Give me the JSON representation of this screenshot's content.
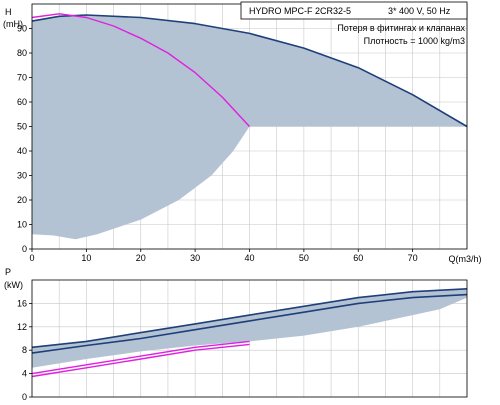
{
  "colors": {
    "envelope_fill": "#b3c3d3",
    "full_speed_curve": "#1f3f7a",
    "single_pump_curve": "#e020e0",
    "grid": "#c8c8c8",
    "axes": "#000000"
  },
  "info_box": {
    "model": "HYDRO MPC-F 2CR32-5",
    "supply": "3* 400 V, 50 Hz",
    "note": "Потеря в фитингах и клапанах",
    "density": "Плотность = 1000 kg/m3"
  },
  "chart_data": [
    {
      "type": "area",
      "panel": "head",
      "title": "",
      "ylabel": "H",
      "yunit": "(mH)",
      "xlabel": "Q(m3/h)",
      "xlim": [
        0,
        80
      ],
      "ylim": [
        0,
        100
      ],
      "xticks": [
        0,
        10,
        20,
        30,
        40,
        50,
        60,
        70
      ],
      "yticks": [
        0,
        10,
        20,
        30,
        40,
        50,
        60,
        70,
        80,
        90
      ],
      "x_tick_labels": [
        "0",
        "10",
        "20",
        "30",
        "40",
        "50",
        "60",
        "70"
      ],
      "y_tick_labels": [
        "0",
        "10",
        "20",
        "30",
        "40",
        "50",
        "60",
        "70",
        "80",
        "90"
      ],
      "x_unit_label": "Q(m3/h)",
      "grid": true,
      "envelope": {
        "upper": [
          [
            0,
            93
          ],
          [
            5,
            95
          ],
          [
            10,
            95.5
          ],
          [
            20,
            94.5
          ],
          [
            30,
            92
          ],
          [
            40,
            88
          ],
          [
            50,
            82
          ],
          [
            60,
            74
          ],
          [
            70,
            63
          ],
          [
            80,
            50
          ]
        ],
        "lower": [
          [
            80,
            50
          ],
          [
            40,
            50
          ],
          [
            37,
            40
          ],
          [
            33,
            30
          ],
          [
            27,
            20
          ],
          [
            20,
            12
          ],
          [
            12,
            6
          ],
          [
            8,
            4
          ],
          [
            4,
            5.5
          ],
          [
            0,
            6
          ]
        ]
      },
      "series": [
        {
          "role": "full_speed_curve",
          "x": [
            0,
            5,
            10,
            20,
            30,
            40,
            50,
            60,
            70,
            80
          ],
          "y": [
            93,
            95,
            95.5,
            94.5,
            92,
            88,
            82,
            74,
            63,
            50
          ]
        },
        {
          "role": "single_pump_curve",
          "x": [
            0,
            5,
            10,
            15,
            20,
            25,
            30,
            35,
            40
          ],
          "y": [
            94.5,
            96,
            94.5,
            91,
            86,
            80,
            72,
            62,
            50
          ]
        }
      ]
    },
    {
      "type": "area",
      "panel": "power",
      "title": "",
      "ylabel": "P",
      "yunit": "(kW)",
      "xlim": [
        0,
        80
      ],
      "ylim": [
        0,
        20
      ],
      "yticks": [
        0,
        4,
        8,
        12,
        16
      ],
      "y_tick_labels": [
        "0",
        "4",
        "8",
        "12",
        "16"
      ],
      "grid": true,
      "envelope": {
        "upper": [
          [
            0,
            8.5
          ],
          [
            10,
            9.5
          ],
          [
            20,
            11
          ],
          [
            30,
            12.5
          ],
          [
            40,
            14
          ],
          [
            50,
            15.5
          ],
          [
            60,
            17
          ],
          [
            70,
            18
          ],
          [
            80,
            18.5
          ]
        ],
        "lower": [
          [
            80,
            17
          ],
          [
            75,
            15
          ],
          [
            70,
            14
          ],
          [
            60,
            12
          ],
          [
            50,
            10.5
          ],
          [
            40,
            9.5
          ],
          [
            30,
            8.8
          ],
          [
            20,
            7.8
          ],
          [
            10,
            6.5
          ],
          [
            0,
            5
          ]
        ]
      },
      "series": [
        {
          "role": "full_speed_curve",
          "x": [
            0,
            10,
            20,
            30,
            40,
            50,
            60,
            70,
            80
          ],
          "y": [
            8.5,
            9.5,
            11,
            12.5,
            14,
            15.5,
            17,
            18,
            18.5
          ]
        },
        {
          "role": "full_speed_curve",
          "x": [
            0,
            10,
            20,
            30,
            40,
            50,
            60,
            70,
            80
          ],
          "y": [
            7.5,
            8.8,
            10,
            11.5,
            13,
            14.5,
            16,
            17,
            17.5
          ]
        },
        {
          "role": "single_pump_curve",
          "x": [
            0,
            10,
            20,
            30,
            40
          ],
          "y": [
            4,
            5.5,
            7,
            8.5,
            9.5
          ]
        },
        {
          "role": "single_pump_curve",
          "x": [
            0,
            10,
            20,
            30,
            40
          ],
          "y": [
            3.5,
            5,
            6.5,
            8,
            9
          ]
        }
      ]
    }
  ]
}
